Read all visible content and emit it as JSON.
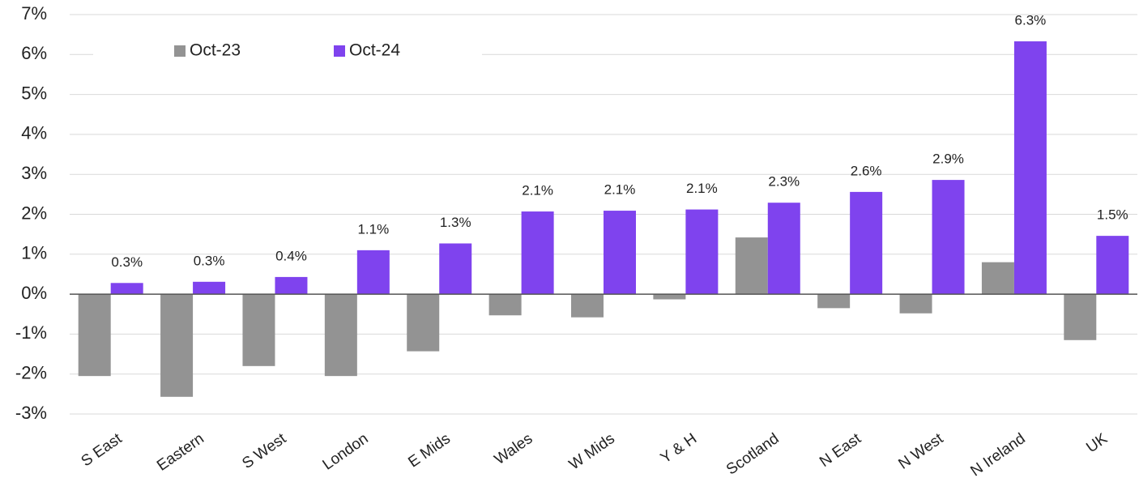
{
  "chart_data": {
    "type": "bar",
    "categories": [
      "S East",
      "Eastern",
      "S West",
      "London",
      "E Mids",
      "Wales",
      "W Mids",
      "Y & H",
      "Scotland",
      "N East",
      "N West",
      "N Ireland",
      "UK"
    ],
    "series": [
      {
        "name": "Oct-23",
        "color": "#939393",
        "values": [
          -2.05,
          -2.57,
          -1.8,
          -2.05,
          -1.43,
          -0.53,
          -0.58,
          -0.13,
          1.42,
          -0.35,
          -0.48,
          0.8,
          -1.15
        ]
      },
      {
        "name": "Oct-24",
        "color": "#7f43ee",
        "values": [
          0.28,
          0.31,
          0.43,
          1.1,
          1.27,
          2.07,
          2.09,
          2.12,
          2.29,
          2.56,
          2.86,
          6.33,
          1.46
        ],
        "value_labels": [
          "0.3%",
          "0.3%",
          "0.4%",
          "1.1%",
          "1.3%",
          "2.1%",
          "2.1%",
          "2.1%",
          "2.3%",
          "2.6%",
          "2.9%",
          "6.3%",
          "1.5%"
        ]
      }
    ],
    "ylim": [
      -3,
      7
    ],
    "yticks": [
      {
        "value": -3,
        "label": "-3%"
      },
      {
        "value": -2,
        "label": "-2%"
      },
      {
        "value": -1,
        "label": "-1%"
      },
      {
        "value": 0,
        "label": "0%"
      },
      {
        "value": 1,
        "label": "1%"
      },
      {
        "value": 2,
        "label": "2%"
      },
      {
        "value": 3,
        "label": "3%"
      },
      {
        "value": 4,
        "label": "4%"
      },
      {
        "value": 5,
        "label": "5%"
      },
      {
        "value": 6,
        "label": "6%"
      },
      {
        "value": 7,
        "label": "7%"
      }
    ],
    "grid": true,
    "legend": "top"
  }
}
